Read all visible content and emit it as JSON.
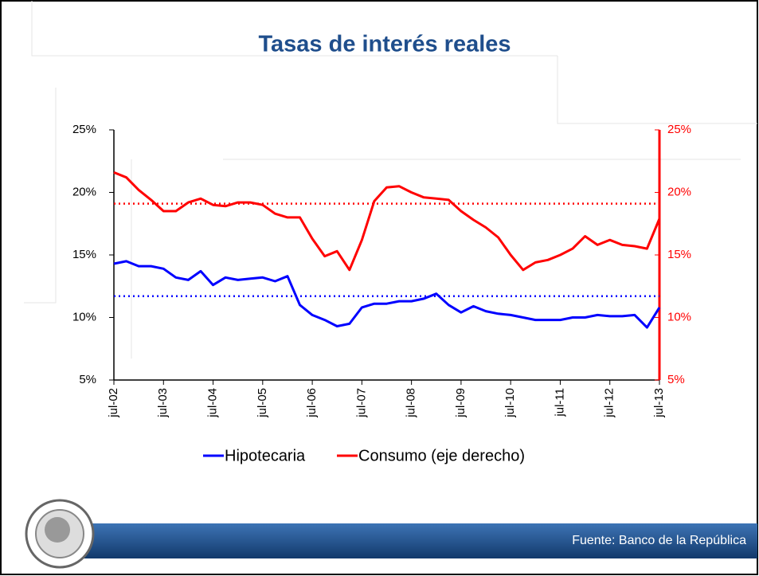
{
  "chart_data": {
    "type": "line",
    "title": "Tasas de interés reales",
    "categories": [
      "jul-02",
      null,
      null,
      null,
      "jul-03",
      null,
      null,
      null,
      "jul-04",
      null,
      null,
      null,
      "jul-05",
      null,
      null,
      null,
      "jul-06",
      null,
      null,
      null,
      "jul-07",
      null,
      null,
      null,
      "jul-08",
      null,
      null,
      null,
      "jul-09",
      null,
      null,
      null,
      "jul-10",
      null,
      null,
      null,
      "jul-11",
      null,
      null,
      null,
      "jul-12",
      null,
      null,
      null,
      "jul-13"
    ],
    "series": [
      {
        "name": "Hipotecaria",
        "color": "#0000ff",
        "values": [
          14.3,
          14.5,
          14.1,
          14.1,
          13.9,
          13.2,
          13.0,
          13.7,
          12.6,
          13.2,
          13.0,
          13.1,
          13.2,
          12.9,
          13.3,
          11.0,
          10.2,
          9.8,
          9.3,
          9.5,
          10.8,
          11.1,
          11.1,
          11.3,
          11.3,
          11.5,
          11.9,
          11.0,
          10.4,
          10.9,
          10.5,
          10.3,
          10.2,
          10.0,
          9.8,
          9.8,
          9.8,
          10.0,
          10.0,
          10.2,
          10.1,
          10.1,
          10.2,
          9.2,
          10.8
        ]
      },
      {
        "name": "Consumo (eje derecho)",
        "color": "#ff0000",
        "axis": "y2",
        "values": [
          21.6,
          21.2,
          20.2,
          19.4,
          18.5,
          18.5,
          19.2,
          19.5,
          19.0,
          18.9,
          19.2,
          19.2,
          19.0,
          18.3,
          18.0,
          18.0,
          16.3,
          14.9,
          15.3,
          13.8,
          16.2,
          19.3,
          20.4,
          20.5,
          20.0,
          19.6,
          19.5,
          19.4,
          18.5,
          17.8,
          17.2,
          16.4,
          15.0,
          13.8,
          14.4,
          14.6,
          15.0,
          15.5,
          16.5,
          15.8,
          16.2,
          15.8,
          15.7,
          15.5,
          17.9
        ]
      }
    ],
    "reference_lines": [
      {
        "value": 11.7,
        "color": "#0000ff"
      },
      {
        "value": 19.1,
        "color": "#ff0000",
        "axis": "y2"
      }
    ],
    "ylim": [
      5,
      25
    ],
    "yticks": [
      {
        "value": 5,
        "label": "5%"
      },
      {
        "value": 10,
        "label": "10%"
      },
      {
        "value": 15,
        "label": "15%"
      },
      {
        "value": 20,
        "label": "20%"
      },
      {
        "value": 25,
        "label": "25%"
      }
    ],
    "y2lim": [
      5,
      25
    ],
    "y2ticks": [
      {
        "value": 5,
        "label": "5%"
      },
      {
        "value": 10,
        "label": "10%"
      },
      {
        "value": 15,
        "label": "15%"
      },
      {
        "value": 20,
        "label": "20%"
      },
      {
        "value": 25,
        "label": "25%"
      }
    ],
    "legend": "bottom"
  },
  "footer": {
    "source": "Fuente: Banco de la República"
  }
}
